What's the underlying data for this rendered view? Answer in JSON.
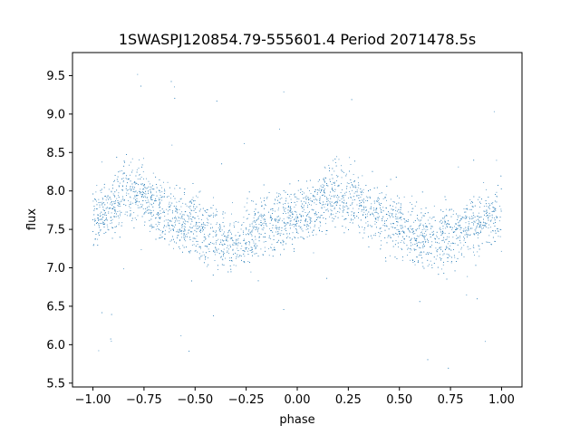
{
  "chart_data": {
    "type": "scatter",
    "title": "1SWASPJ120854.79-555601.4 Period 2071478.5s",
    "xlabel": "phase",
    "ylabel": "flux",
    "xlim": [
      -1.1,
      1.1
    ],
    "ylim": [
      5.45,
      9.8
    ],
    "xticks": [
      -1.0,
      -0.75,
      -0.5,
      -0.25,
      0.0,
      0.25,
      0.5,
      0.75,
      1.0
    ],
    "xtick_labels": [
      "−1.00",
      "−0.75",
      "−0.50",
      "−0.25",
      "0.00",
      "0.25",
      "0.50",
      "0.75",
      "1.00"
    ],
    "yticks": [
      5.5,
      6.0,
      6.5,
      7.0,
      7.5,
      8.0,
      8.5,
      9.0,
      9.5
    ],
    "ytick_labels": [
      "5.5",
      "6.0",
      "6.5",
      "7.0",
      "7.5",
      "8.0",
      "8.5",
      "9.0",
      "9.5"
    ],
    "grid": false,
    "legend": false,
    "marker_color": "#1f77b4",
    "series": [
      {
        "x": [
          -1.0,
          -0.95,
          -0.9,
          -0.85,
          -0.8,
          -0.75,
          -0.7,
          -0.65,
          -0.6,
          -0.55,
          -0.5,
          -0.45,
          -0.4,
          -0.35,
          -0.3,
          -0.25,
          -0.2,
          -0.15,
          -0.1,
          -0.05,
          0.0,
          0.05,
          0.1,
          0.15,
          0.2,
          0.25,
          0.3,
          0.35,
          0.4,
          0.45,
          0.5,
          0.55,
          0.6,
          0.65,
          0.7,
          0.75,
          0.8,
          0.85,
          0.9,
          0.95,
          1.0
        ],
        "y": [
          7.65,
          7.7,
          7.8,
          7.95,
          8.0,
          7.9,
          7.8,
          7.7,
          7.65,
          7.6,
          7.55,
          7.45,
          7.4,
          7.35,
          7.35,
          7.4,
          7.5,
          7.55,
          7.6,
          7.65,
          7.65,
          7.7,
          7.8,
          7.95,
          8.0,
          7.9,
          7.8,
          7.7,
          7.65,
          7.6,
          7.55,
          7.45,
          7.4,
          7.35,
          7.35,
          7.4,
          7.5,
          7.55,
          7.6,
          7.65,
          7.65
        ],
        "spread": [
          0.35,
          0.35,
          0.4,
          0.4,
          0.4,
          0.4,
          0.4,
          0.4,
          0.4,
          0.4,
          0.4,
          0.4,
          0.4,
          0.4,
          0.4,
          0.4,
          0.4,
          0.4,
          0.4,
          0.4,
          0.35,
          0.35,
          0.4,
          0.4,
          0.4,
          0.4,
          0.4,
          0.4,
          0.4,
          0.4,
          0.4,
          0.4,
          0.4,
          0.4,
          0.4,
          0.4,
          0.4,
          0.4,
          0.4,
          0.4,
          0.35
        ]
      }
    ]
  }
}
